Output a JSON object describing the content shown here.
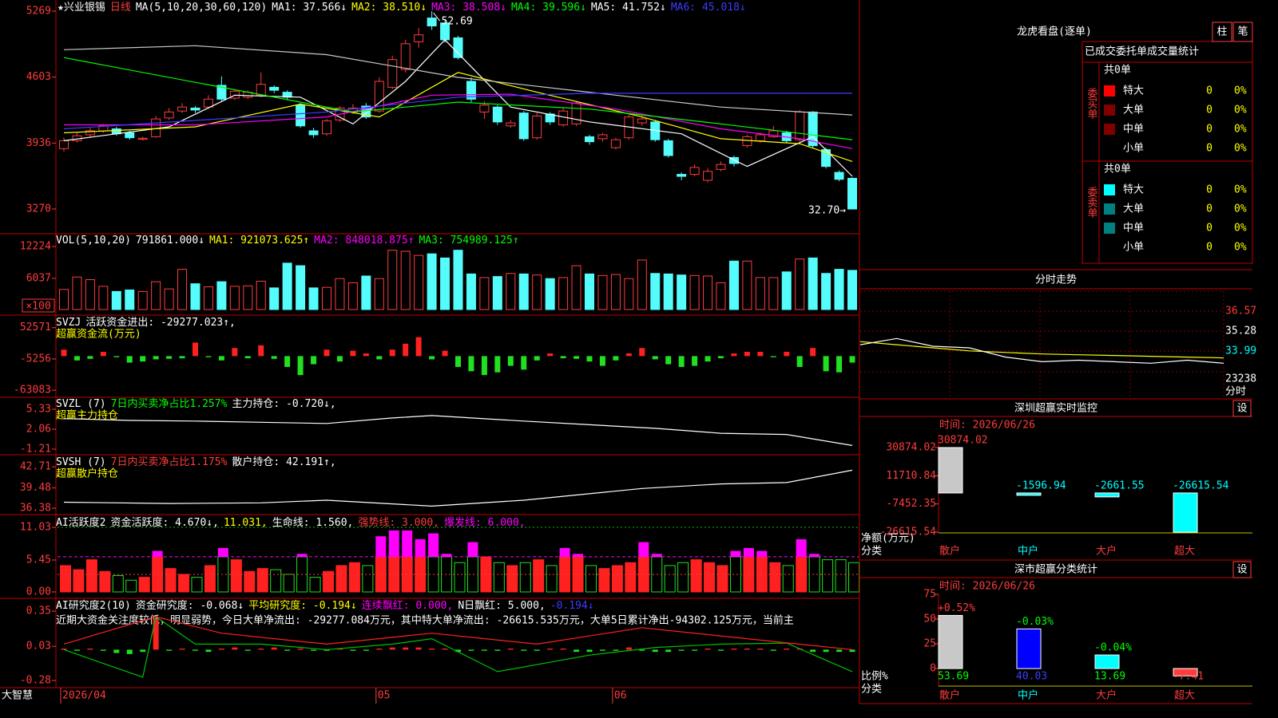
{
  "brand": "大智慧",
  "kline": {
    "legend": [
      {
        "text": "★兴业银锡",
        "color": "#ffffff"
      },
      {
        "text": "日线",
        "color": "#ff3c3c"
      },
      {
        "text": "MA(5,10,20,30,60,120)",
        "color": "#ffffff"
      },
      {
        "text": "MA1: 37.566↓",
        "color": "#ffffff"
      },
      {
        "text": "MA2: 38.510↓",
        "color": "#ffff00"
      },
      {
        "text": "MA3: 38.508↓",
        "color": "#ff00ff"
      },
      {
        "text": "MA4: 39.596↓",
        "color": "#00ff00"
      },
      {
        "text": "MA5: 41.752↓",
        "color": "#ffffff"
      },
      {
        "text": "MA6: 45.018↓",
        "color": "#3c3cff"
      }
    ],
    "ylim": [
      3044,
      5366
    ],
    "yticks": [
      5269,
      4603,
      3936,
      3270
    ],
    "high_label": "52.69",
    "low_label": "32.70→",
    "colors": {
      "up": "#ff3c3c",
      "down": "#54fcfc"
    },
    "candles": [
      [
        3880,
        3960,
        3990,
        3850
      ],
      [
        3960,
        4010,
        4040,
        3940
      ],
      [
        4020,
        4060,
        4090,
        4000
      ],
      [
        4060,
        4110,
        4130,
        4040
      ],
      [
        4080,
        4030,
        4100,
        4010
      ],
      [
        4040,
        3990,
        4060,
        3970
      ],
      [
        3975,
        3985,
        4000,
        3960
      ],
      [
        4000,
        4180,
        4210,
        3990
      ],
      [
        4190,
        4250,
        4290,
        4170
      ],
      [
        4260,
        4300,
        4340,
        4240
      ],
      [
        4290,
        4270,
        4310,
        4240
      ],
      [
        4300,
        4380,
        4420,
        4280
      ],
      [
        4520,
        4380,
        4610,
        4360
      ],
      [
        4390,
        4460,
        4480,
        4370
      ],
      [
        4400,
        4450,
        4470,
        4380
      ],
      [
        4420,
        4530,
        4650,
        4400
      ],
      [
        4500,
        4470,
        4520,
        4440
      ],
      [
        4450,
        4400,
        4470,
        4370
      ],
      [
        4320,
        4110,
        4340,
        4090
      ],
      [
        4060,
        4020,
        4090,
        3990
      ],
      [
        4030,
        4160,
        4180,
        4010
      ],
      [
        4170,
        4290,
        4310,
        4150
      ],
      [
        4250,
        4290,
        4330,
        4230
      ],
      [
        4310,
        4200,
        4340,
        4180
      ],
      [
        4260,
        4560,
        4600,
        4240
      ],
      [
        4500,
        4780,
        4820,
        4480
      ],
      [
        4680,
        4940,
        4980,
        4650
      ],
      [
        4960,
        5030,
        5100,
        4900
      ],
      [
        5200,
        5120,
        5269,
        5080
      ],
      [
        5150,
        4980,
        5190,
        4950
      ],
      [
        5000,
        4800,
        5020,
        4780
      ],
      [
        4560,
        4380,
        4600,
        4350
      ],
      [
        4250,
        4320,
        4360,
        4180
      ],
      [
        4300,
        4150,
        4320,
        4120
      ],
      [
        4110,
        4140,
        4170,
        4090
      ],
      [
        4240,
        3980,
        4260,
        3960
      ],
      [
        3990,
        4210,
        4240,
        3970
      ],
      [
        4230,
        4150,
        4250,
        4120
      ],
      [
        4120,
        4260,
        4290,
        4100
      ],
      [
        4130,
        4340,
        4360,
        4110
      ],
      [
        4000,
        3950,
        4020,
        3920
      ],
      [
        3980,
        4020,
        4040,
        3950
      ],
      [
        3890,
        3970,
        3990,
        3870
      ],
      [
        3990,
        4200,
        4220,
        3970
      ],
      [
        4140,
        4180,
        4210,
        4110
      ],
      [
        4150,
        3970,
        4170,
        3950
      ],
      [
        3960,
        3810,
        3980,
        3790
      ],
      [
        3620,
        3600,
        3640,
        3560
      ],
      [
        3620,
        3690,
        3720,
        3600
      ],
      [
        3560,
        3650,
        3680,
        3540
      ],
      [
        3670,
        3720,
        3750,
        3650
      ],
      [
        3790,
        3730,
        3810,
        3700
      ],
      [
        3910,
        4000,
        4020,
        3890
      ],
      [
        3960,
        4020,
        4040,
        3940
      ],
      [
        4000,
        4060,
        4110,
        3990
      ],
      [
        4040,
        3960,
        4060,
        3940
      ],
      [
        3970,
        4250,
        4270,
        3950
      ],
      [
        4250,
        3910,
        4260,
        3890
      ],
      [
        3870,
        3700,
        3890,
        3680
      ],
      [
        3640,
        3570,
        3660,
        3550
      ],
      [
        3580,
        3270,
        3590,
        3270
      ]
    ],
    "ma_lines": [
      {
        "color": "#ffffff",
        "x": [
          0,
          8,
          13,
          18,
          22,
          26,
          29,
          34,
          40,
          47,
          52,
          57,
          60
        ],
        "values": [
          3960,
          4100,
          4420,
          4400,
          4130,
          4560,
          4980,
          4300,
          4150,
          4030,
          3700,
          4000,
          3600
        ]
      },
      {
        "color": "#ffff00",
        "x": [
          0,
          10,
          18,
          24,
          30,
          36,
          44,
          50,
          56,
          60
        ],
        "values": [
          4040,
          4100,
          4330,
          4200,
          4650,
          4450,
          4200,
          3980,
          3930,
          3750
        ]
      },
      {
        "color": "#ff00ff",
        "x": [
          0,
          10,
          20,
          28,
          34,
          42,
          50,
          56,
          60
        ],
        "values": [
          4120,
          4120,
          4200,
          4420,
          4430,
          4280,
          4080,
          3980,
          3880
        ]
      },
      {
        "color": "#00ff00",
        "x": [
          0,
          12,
          22,
          30,
          40,
          50,
          60
        ],
        "values": [
          4800,
          4500,
          4250,
          4350,
          4280,
          4130,
          3970
        ]
      },
      {
        "color": "#c8c8c8",
        "x": [
          0,
          10,
          20,
          30,
          40,
          50,
          60
        ],
        "values": [
          4880,
          4920,
          4830,
          4600,
          4450,
          4300,
          4220
        ]
      },
      {
        "color": "#3c3cff",
        "x": [
          0,
          20,
          30,
          40,
          60
        ],
        "values": [
          4080,
          4250,
          4400,
          4440,
          4440
        ]
      }
    ],
    "dates": [
      "2026/04",
      null,
      null,
      null,
      null,
      null,
      null,
      null,
      null,
      null,
      null,
      null,
      null,
      null,
      null,
      null,
      null,
      null,
      null,
      null,
      null,
      null,
      null,
      null,
      "05",
      null,
      null,
      null,
      null,
      null,
      null,
      null,
      null,
      null,
      null,
      null,
      null,
      null,
      null,
      null,
      null,
      null,
      "06",
      null,
      null,
      null,
      null,
      null,
      null,
      null,
      null,
      null,
      null,
      null,
      null,
      null,
      null,
      null,
      null,
      null,
      null
    ]
  },
  "volume": {
    "legend": [
      {
        "text": "VOL(5,10,20)",
        "color": "#ffffff"
      },
      {
        "text": "791861.000↓",
        "color": "#ffffff"
      },
      {
        "text": "MA1: 921073.625↑",
        "color": "#ffff00"
      },
      {
        "text": "MA2: 848018.875↑",
        "color": "#ff00ff"
      },
      {
        "text": "MA3: 754989.125↑",
        "color": "#00ff00"
      }
    ],
    "unit": "×100",
    "ylim": [
      0,
      14390
    ],
    "yticks": [
      12224,
      6037
    ],
    "values": [
      3900,
      6300,
      5800,
      4500,
      3500,
      3800,
      3500,
      5400,
      4000,
      7800,
      5000,
      4400,
      5400,
      4500,
      4600,
      5500,
      4200,
      9000,
      8500,
      4200,
      4300,
      6000,
      5200,
      6500,
      6000,
      11500,
      11300,
      10500,
      10800,
      10000,
      11500,
      6900,
      6200,
      6400,
      7000,
      6900,
      6700,
      6000,
      6200,
      8500,
      6900,
      6600,
      6800,
      6000,
      9600,
      7000,
      6900,
      6700,
      6600,
      6500,
      5200,
      9400,
      9400,
      6200,
      6200,
      7300,
      9800,
      10000,
      7000,
      7800,
      7600
    ]
  },
  "svzj": {
    "legend": [
      {
        "text": "SVZJ",
        "color": "#ffffff"
      },
      {
        "text": "活跃资金进出: -29277.023↑,",
        "color": "#ffffff"
      }
    ],
    "subtitle": "超赢资金流(万元)",
    "colors": {
      "up": "#ff2020",
      "down": "#20e020"
    },
    "ylim": [
      -73200,
      71370
    ],
    "yticks": [
      52571,
      -5256,
      -63083
    ],
    "values": [
      12000,
      -8000,
      -5000,
      8000,
      -2000,
      -12000,
      -10000,
      -6000,
      -5000,
      -4000,
      25000,
      -2000,
      -8000,
      15000,
      -4000,
      20000,
      -5000,
      -20000,
      -35000,
      -15000,
      12000,
      -10000,
      10000,
      5000,
      -6000,
      12000,
      23000,
      35000,
      -6000,
      10000,
      -20000,
      -28000,
      -35000,
      -30000,
      -18000,
      -25000,
      -8000,
      5000,
      -4000,
      -5000,
      -10000,
      -18000,
      -8000,
      5000,
      15000,
      -6000,
      -15000,
      -20000,
      -18000,
      -10000,
      -4000,
      5000,
      8000,
      8000,
      -2000,
      8000,
      -20000,
      15000,
      -28000,
      -30000,
      -12000
    ]
  },
  "svzl": {
    "legend": [
      {
        "text": "SVZL (7)",
        "color": "#ffffff"
      },
      {
        "text": "7日内买卖净占比1.257%",
        "color": "#00ff00"
      },
      {
        "text": "主力持仓: -0.720↓,",
        "color": "#ffffff"
      }
    ],
    "subtitle": "超赢主力持仓",
    "ylim": [
      -1.86,
      7.03
    ],
    "yticks": [
      5.33,
      2.06,
      -1.21
    ],
    "line": {
      "color": "#ffffff",
      "x": [
        0,
        5,
        10,
        15,
        20,
        25,
        28,
        35,
        40,
        45,
        50,
        55,
        60
      ],
      "values": [
        3.8,
        3.5,
        3.4,
        3.2,
        3.0,
        3.9,
        4.3,
        3.4,
        2.8,
        2.2,
        1.4,
        1.2,
        -0.6
      ]
    }
  },
  "svsh": {
    "legend": [
      {
        "text": "SVSH (7)",
        "color": "#ffffff"
      },
      {
        "text": "7日内买卖净占比1.175%",
        "color": "#ff3c3c"
      },
      {
        "text": "散户持仓: 42.191↑,",
        "color": "#ffffff"
      }
    ],
    "subtitle": "超赢散户持仓",
    "ylim": [
      35.65,
      44.32
    ],
    "yticks": [
      42.71,
      39.48,
      36.38
    ],
    "line": {
      "color": "#ffffff",
      "x": [
        0,
        8,
        15,
        20,
        28,
        35,
        44,
        50,
        55,
        60
      ],
      "values": [
        37.3,
        37.1,
        37.2,
        37.6,
        36.7,
        37.6,
        39.4,
        40.1,
        40.3,
        42.2
      ]
    }
  },
  "activity": {
    "legend": [
      {
        "text": "AI活跃度2",
        "color": "#ffffff"
      },
      {
        "text": "资金活跃度: 4.670↓,",
        "color": "#ffffff"
      },
      {
        "text": "11.031,",
        "color": "#ffff00"
      },
      {
        "text": "生命线: 1.560,",
        "color": "#ffffff"
      },
      {
        "text": "强势线: 3.000,",
        "color": "#ff3c3c"
      },
      {
        "text": "爆发线: 6.000,",
        "color": "#ff00ff"
      }
    ],
    "ylim": [
      -0.82,
      12.8
    ],
    "yticks": [
      11.03,
      5.45,
      {
        "value": 0,
        "label": "0.00"
      }
    ],
    "ref_lines": [
      {
        "value": 11.031,
        "color": "#00c000"
      },
      {
        "value": 3,
        "color": "#ff3c3c"
      }
    ],
    "burst": {
      "value": 6,
      "color": "#ff00ff"
    },
    "colors": {
      "up": "#ff2020",
      "down": "#20e020"
    },
    "values": [
      4.5,
      3.8,
      5.5,
      3.5,
      2.8,
      2.0,
      2.5,
      7.0,
      4.0,
      3.0,
      2.5,
      4.5,
      7.5,
      5.5,
      3.5,
      4.0,
      3.8,
      3.0,
      6.5,
      2.5,
      3.5,
      4.5,
      5.0,
      4.5,
      9.5,
      10.5,
      10.5,
      9.0,
      10.0,
      6.5,
      5.0,
      8.5,
      6.0,
      5.0,
      4.5,
      5.0,
      5.5,
      4.5,
      7.5,
      6.5,
      4.5,
      4.0,
      4.5,
      5.0,
      8.5,
      6.5,
      4.5,
      5.0,
      5.5,
      5.0,
      4.5,
      7.0,
      7.5,
      7.0,
      5.0,
      4.5,
      9.0,
      6.5,
      5.5,
      5.5,
      5.0
    ]
  },
  "research": {
    "legend": [
      {
        "text": "AI研究度2(10)",
        "color": "#ffffff"
      },
      {
        "text": "资金研究度: -0.068↓",
        "color": "#ffffff"
      },
      {
        "text": "平均研究度: -0.194↓",
        "color": "#ffff00"
      },
      {
        "text": "连续飘红: 0.000,",
        "color": "#ff00ff"
      },
      {
        "text": "N日飘红: 5.000,",
        "color": "#ffffff"
      },
      {
        "text": "-0.194↓",
        "color": "#3c3cff"
      }
    ],
    "note": "近期大资金关注度较低，明显弱势，今日大单净流出: -29277.084万元，其中特大单净流出: -26615.535万元，大单5日累计净出-94302.125万元，当前主",
    "ylim": [
      -0.331,
      0.452
    ],
    "yticks": [
      0.35,
      0.03,
      -0.28
    ],
    "colors": {
      "up": "#ff2020",
      "down": "#20e020"
    },
    "values": [
      0.01,
      -0.01,
      0.01,
      -0.01,
      -0.03,
      -0.04,
      -0.02,
      0.28,
      -0.01,
      0.01,
      -0.01,
      -0.02,
      0.01,
      0.02,
      -0.01,
      0.01,
      0.02,
      -0.01,
      0.01,
      -0.01,
      -0.01,
      0.01,
      -0.01,
      -0.01,
      0.01,
      0.02,
      0.02,
      0.02,
      0.01,
      0.01,
      -0.02,
      -0.01,
      -0.01,
      -0.01,
      0.01,
      -0.01,
      -0.01,
      0.01,
      0.01,
      -0.02,
      -0.02,
      -0.01,
      -0.01,
      0.02,
      -0.01,
      -0.02,
      -0.02,
      -0.01,
      -0.01,
      0.01,
      -0.01,
      0.01,
      0.01,
      0.01,
      -0.01,
      0.01,
      0.01,
      -0.02,
      -0.02,
      -0.02,
      -0.02
    ],
    "lines": [
      {
        "color": "#00c000",
        "x": [
          0,
          6,
          7,
          10,
          15,
          20,
          25,
          28,
          33,
          40,
          45,
          50,
          55,
          60
        ],
        "values": [
          0.0,
          -0.25,
          0.3,
          0.05,
          0.05,
          0.0,
          0.05,
          0.1,
          -0.2,
          -0.05,
          0.02,
          0.05,
          0.06,
          -0.2
        ]
      },
      {
        "color": "#ff2020",
        "x": [
          0,
          7,
          12,
          20,
          28,
          36,
          44,
          52,
          60
        ],
        "values": [
          0.05,
          0.3,
          0.15,
          0.05,
          0.15,
          0.05,
          0.2,
          0.1,
          0.0
        ]
      }
    ]
  },
  "dragon": {
    "title": "龙虎看盘(逐单)",
    "buttons": [
      "柱",
      "笔"
    ],
    "subtitle": "已成交委托单成交量统计",
    "groups": [
      {
        "label": "委买单",
        "total": "共0单",
        "rows": [
          {
            "name": "特大",
            "color": "#ff0000",
            "count": 0,
            "pct": "0%"
          },
          {
            "name": "大单",
            "color": "#800000",
            "count": 0,
            "pct": "0%"
          },
          {
            "name": "中单",
            "color": "#800000",
            "count": 0,
            "pct": "0%"
          },
          {
            "name": "小单",
            "count": 0,
            "pct": "0%"
          }
        ]
      },
      {
        "label": "委卖单",
        "total": "共0单",
        "rows": [
          {
            "name": "特大",
            "color": "#00ffff",
            "count": 0,
            "pct": "0%"
          },
          {
            "name": "大单",
            "color": "#008080",
            "count": 0,
            "pct": "0%"
          },
          {
            "name": "中单",
            "color": "#008080",
            "count": 0,
            "pct": "0%"
          },
          {
            "name": "小单",
            "count": 0,
            "pct": "0%"
          }
        ]
      }
    ]
  },
  "intraday": {
    "title": "分时走势",
    "ylim": [
      32.65,
      37.86
    ],
    "yticks": [
      36.57,
      35.28,
      33.99
    ],
    "vol_tick": 23238,
    "unit": "分时",
    "price": {
      "color": "#ffffff",
      "values": [
        34.4,
        34.8,
        34.3,
        34.2,
        33.6,
        33.3,
        33.4,
        33.3,
        33.2,
        33.4,
        33.2
      ]
    },
    "average": {
      "color": "#ffff00",
      "values": [
        34.6,
        34.4,
        34.2,
        34.0,
        33.9,
        33.8,
        33.75,
        33.7,
        33.65,
        33.6,
        33.55
      ]
    }
  },
  "monitor": {
    "title": "深圳超赢实时监控",
    "button": "设",
    "time": "时间: 2026/06/26",
    "ylim": [
      -26615.54,
      30874.02
    ],
    "yticks": [
      30874.02,
      11710.84,
      -7452.35,
      -26615.54
    ],
    "ylabel": "净额(万元)",
    "xlabel": "分类",
    "categories": [
      "散户",
      "中户",
      "大户",
      "超大"
    ],
    "colors": [
      "#c8c8c8",
      "#00ffff",
      "#00ffff",
      "#00ffff"
    ],
    "values": [
      30874.02,
      -1596.94,
      -2661.55,
      -26615.54
    ]
  },
  "stats": {
    "title": "深市超赢分类统计",
    "button": "设",
    "time": "时间: 2026/06/26",
    "ylim": [
      0,
      75
    ],
    "yticks": [
      75,
      50,
      25,
      0
    ],
    "ylabel": "比例%",
    "xlabel": "分类",
    "categories": [
      "散户",
      "中户",
      "大户",
      "超大"
    ],
    "colors": [
      "#c8c8c8",
      "#0000ff",
      "#00ffff",
      "#ff3c3c"
    ],
    "values": [
      53.69,
      40.03,
      13.69,
      -7.41
    ],
    "change_labels": [
      "+0.52%",
      "-0.03%",
      "-0.04%",
      null
    ]
  }
}
